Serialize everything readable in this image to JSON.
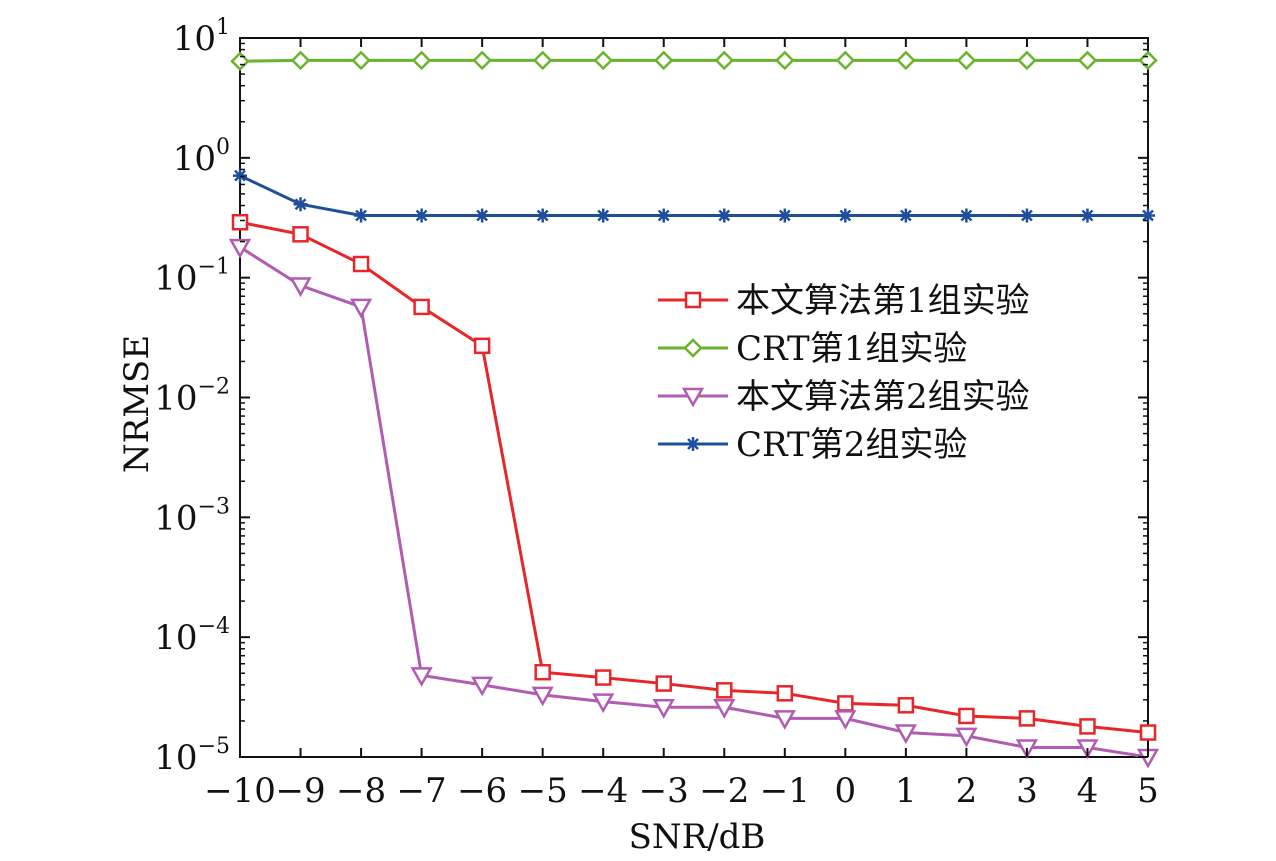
{
  "chart_data": {
    "type": "line",
    "title": "",
    "xlabel": "SNR/dB",
    "ylabel": "NRMSE",
    "x": [
      -10,
      -9,
      -8,
      -7,
      -6,
      -5,
      -4,
      -3,
      -2,
      -1,
      0,
      1,
      2,
      3,
      4,
      5
    ],
    "xlim": [
      -10,
      5
    ],
    "ylim": [
      1e-05,
      10
    ],
    "yscale": "log",
    "x_tick_labels": [
      "−10",
      "−9",
      "−8",
      "−7",
      "−6",
      "−5",
      "−4",
      "−3",
      "−2",
      "−1",
      "0",
      "1",
      "2",
      "3",
      "4",
      "5"
    ],
    "y_ticks": [
      {
        "base": "10",
        "exp": "1",
        "value": 10
      },
      {
        "base": "10",
        "exp": "0",
        "value": 1
      },
      {
        "base": "10",
        "exp": "−1",
        "value": 0.1
      },
      {
        "base": "10",
        "exp": "−2",
        "value": 0.01
      },
      {
        "base": "10",
        "exp": "−3",
        "value": 0.001
      },
      {
        "base": "10",
        "exp": "−4",
        "value": 0.0001
      },
      {
        "base": "10",
        "exp": "−5",
        "value": 1e-05
      }
    ],
    "grid": false,
    "legend_position": "right-middle",
    "series": [
      {
        "name": "本文算法第1组实验",
        "color": "#e8262a",
        "marker": "square",
        "values": [
          0.29,
          0.23,
          0.13,
          0.057,
          0.027,
          5.1e-05,
          4.6e-05,
          4.1e-05,
          3.6e-05,
          3.4e-05,
          2.8e-05,
          2.7e-05,
          2.2e-05,
          2.1e-05,
          1.8e-05,
          1.6e-05
        ]
      },
      {
        "name": "CRT第1组实验",
        "color": "#6ab42d",
        "marker": "diamond",
        "values": [
          6.4,
          6.5,
          6.5,
          6.5,
          6.5,
          6.5,
          6.5,
          6.5,
          6.5,
          6.5,
          6.5,
          6.5,
          6.5,
          6.5,
          6.5,
          6.5
        ]
      },
      {
        "name": "本文算法第2组实验",
        "color": "#b05cb3",
        "marker": "triangle-down",
        "values": [
          0.18,
          0.086,
          0.057,
          4.8e-05,
          4e-05,
          3.3e-05,
          2.9e-05,
          2.6e-05,
          2.6e-05,
          2.1e-05,
          2.1e-05,
          1.6e-05,
          1.5e-05,
          1.2e-05,
          1.2e-05,
          1e-05
        ]
      },
      {
        "name": "CRT第2组实验",
        "color": "#1f4e9c",
        "marker": "asterisk",
        "values": [
          0.71,
          0.41,
          0.33,
          0.33,
          0.33,
          0.33,
          0.33,
          0.33,
          0.33,
          0.33,
          0.33,
          0.33,
          0.33,
          0.33,
          0.33,
          0.33
        ]
      }
    ]
  }
}
